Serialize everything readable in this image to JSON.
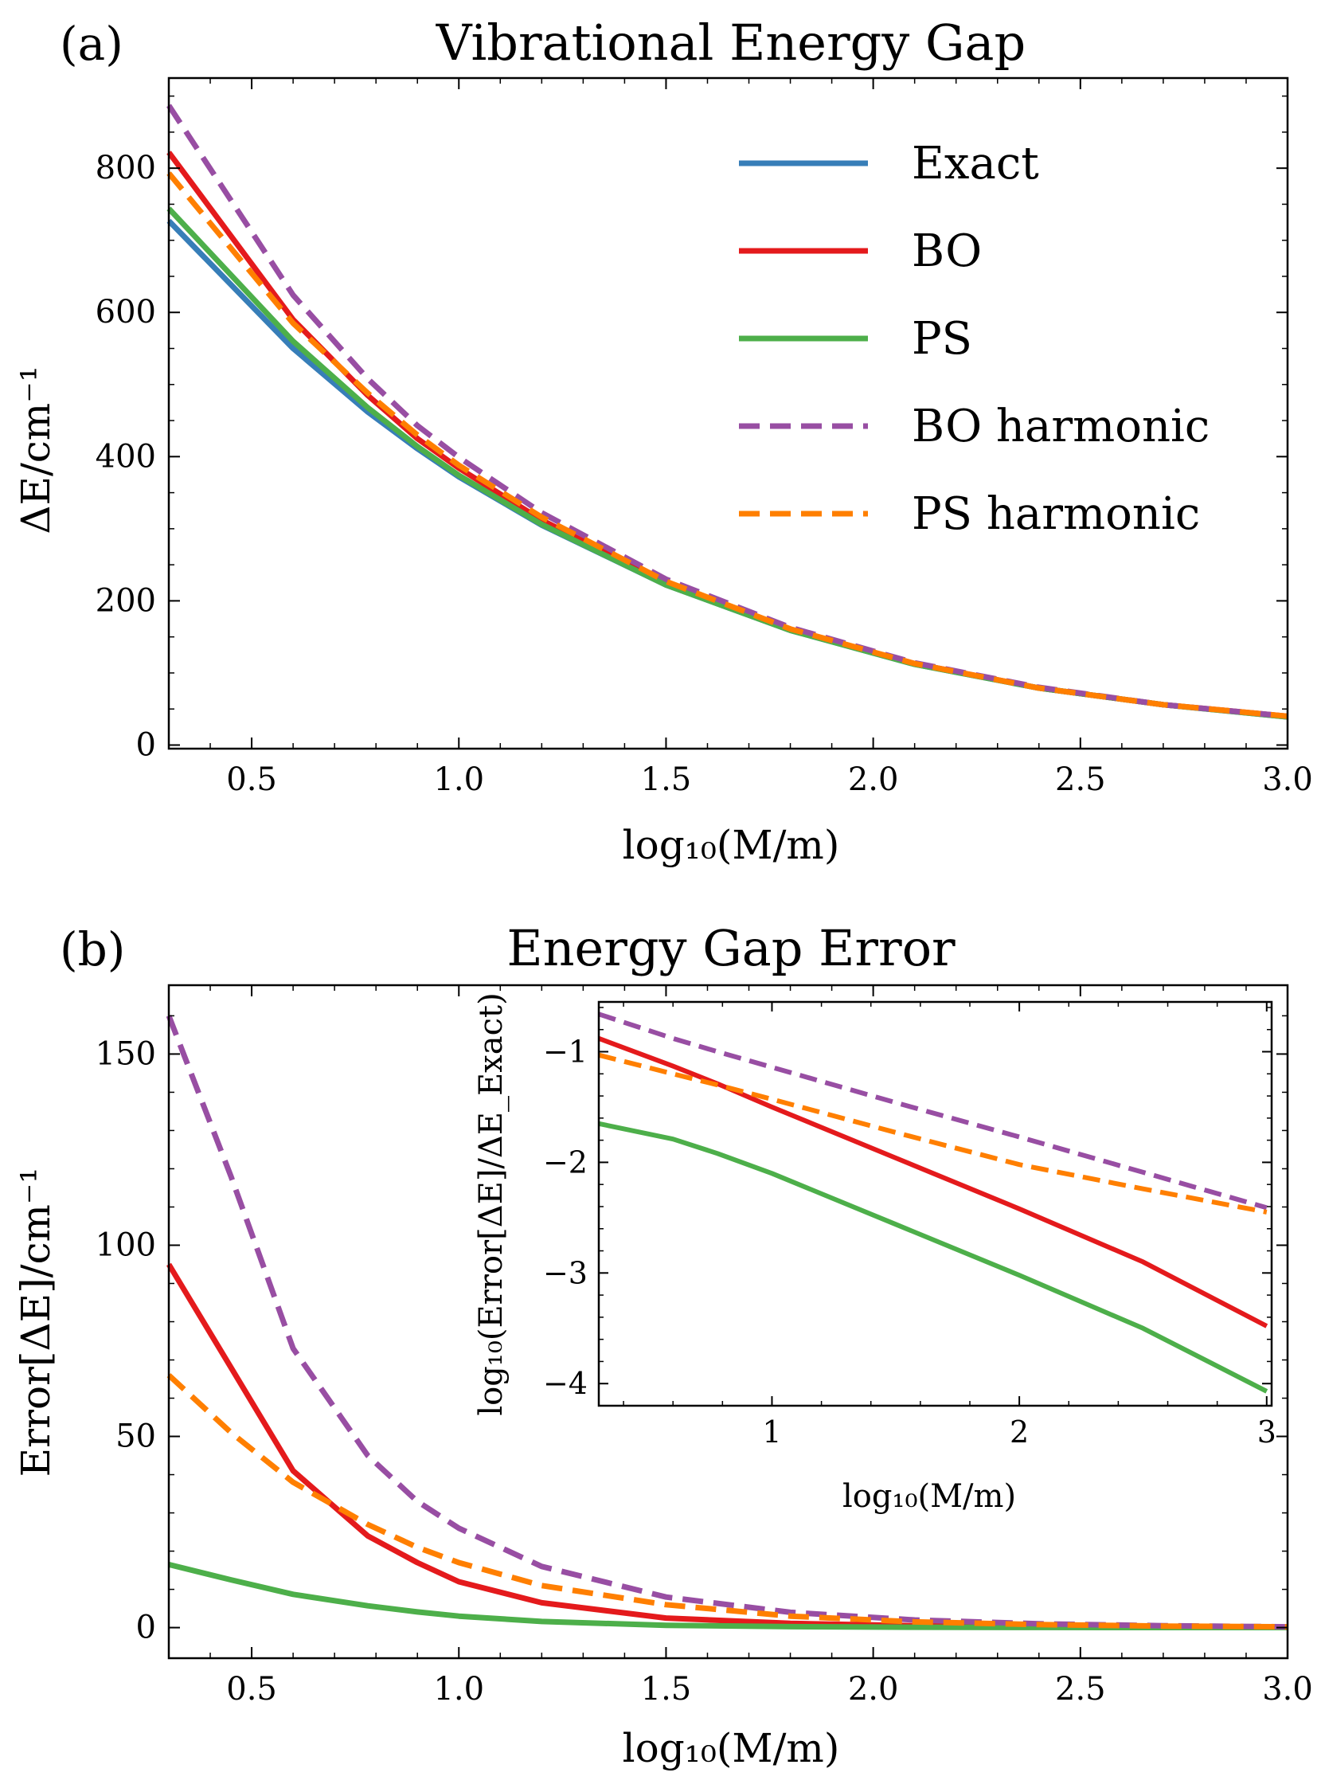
{
  "colors": {
    "Exact": "#377eb8",
    "BO": "#e41a1c",
    "PS": "#4daf4a",
    "BO harmonic": "#984ea3",
    "PS harmonic": "#ff7f00"
  },
  "chart_data": [
    {
      "type": "line",
      "panel_label": "(a)",
      "title": "Vibrational Energy Gap",
      "xlabel": "log₁₀(M/m)",
      "ylabel": "ΔE/cm⁻¹",
      "xlim": [
        0.3,
        3.0
      ],
      "ylim": [
        -5,
        925
      ],
      "xticks": [
        0.5,
        1.0,
        1.5,
        2.0,
        2.5,
        3.0
      ],
      "xtick_labels": [
        "0.5",
        "1.0",
        "1.5",
        "2.0",
        "2.5",
        "3.0"
      ],
      "yticks": [
        0,
        200,
        400,
        600,
        800
      ],
      "ytick_labels": [
        "0",
        "200",
        "400",
        "600",
        "800"
      ],
      "legend_position": "top-right",
      "x": [
        0.3,
        0.6,
        0.78,
        0.9,
        1.0,
        1.2,
        1.5,
        1.8,
        2.1,
        2.4,
        2.7,
        3.0
      ],
      "series": [
        {
          "name": "Exact",
          "dash": "solid",
          "values": [
            727,
            550,
            462,
            411,
            372,
            305,
            222,
            159,
            112,
            79,
            56,
            39
          ]
        },
        {
          "name": "BO",
          "dash": "solid",
          "values": [
            822,
            590,
            485,
            425,
            384,
            312,
            225,
            160,
            113,
            79,
            56,
            40
          ]
        },
        {
          "name": "PS",
          "dash": "solid",
          "values": [
            744,
            560,
            468,
            414,
            374,
            306,
            222,
            159,
            112,
            79,
            56,
            39
          ]
        },
        {
          "name": "BO harmonic",
          "dash": "dashed",
          "values": [
            887,
            624,
            508,
            443,
            399,
            322,
            230,
            163,
            114,
            80,
            56,
            40
          ]
        },
        {
          "name": "PS harmonic",
          "dash": "dashed",
          "values": [
            793,
            585,
            488,
            430,
            388,
            316,
            227,
            161,
            113,
            79,
            56,
            40
          ]
        }
      ]
    },
    {
      "type": "line",
      "panel_label": "(b)",
      "title": "Energy Gap Error",
      "xlabel": "log₁₀(M/m)",
      "ylabel": "Error[ΔE]/cm⁻¹",
      "xlim": [
        0.3,
        3.0
      ],
      "ylim": [
        -8,
        168
      ],
      "xticks": [
        0.5,
        1.0,
        1.5,
        2.0,
        2.5,
        3.0
      ],
      "xtick_labels": [
        "0.5",
        "1.0",
        "1.5",
        "2.0",
        "2.5",
        "3.0"
      ],
      "yticks": [
        0,
        50,
        100,
        150
      ],
      "ytick_labels": [
        "0",
        "50",
        "100",
        "150"
      ],
      "x": [
        0.3,
        0.45,
        0.6,
        0.78,
        0.9,
        1.0,
        1.2,
        1.5,
        1.8,
        2.1,
        2.4,
        2.7,
        3.0
      ],
      "series": [
        {
          "name": "BO",
          "dash": "solid",
          "values": [
            95,
            68,
            41,
            24,
            17,
            12,
            6.5,
            2.5,
            1.1,
            0.5,
            0.2,
            0.1,
            0.05
          ]
        },
        {
          "name": "PS",
          "dash": "solid",
          "values": [
            16.5,
            12.5,
            8.7,
            5.7,
            4.1,
            3.0,
            1.6,
            0.6,
            0.25,
            0.1,
            0.05,
            0.02,
            0.01
          ]
        },
        {
          "name": "BO harmonic",
          "dash": "dashed",
          "values": [
            160,
            118,
            73,
            45,
            33,
            26,
            16,
            8,
            4,
            2,
            1,
            0.5,
            0.2
          ]
        },
        {
          "name": "PS harmonic",
          "dash": "dashed",
          "values": [
            66,
            51,
            38,
            27,
            21,
            17,
            11,
            6,
            3,
            1.5,
            0.8,
            0.4,
            0.2
          ]
        }
      ],
      "inset": {
        "type": "line",
        "xlabel": "log₁₀(M/m)",
        "ylabel": "log₁₀(Error[ΔE]/ΔE_Exact)",
        "xlim": [
          0.3,
          3.02
        ],
        "ylim": [
          -4.2,
          -0.55
        ],
        "xticks": [
          1,
          2,
          3
        ],
        "xtick_labels": [
          "1",
          "2",
          "3"
        ],
        "yticks": [
          -1,
          -2,
          -3,
          -4
        ],
        "ytick_labels": [
          "−1",
          "−2",
          "−3",
          "−4"
        ],
        "x": [
          0.3,
          0.6,
          0.78,
          1.0,
          1.5,
          2.0,
          2.5,
          3.0
        ],
        "series": [
          {
            "name": "BO",
            "dash": "solid",
            "values": [
              -0.88,
              -1.13,
              -1.29,
              -1.5,
              -1.96,
              -2.42,
              -2.9,
              -3.48
            ]
          },
          {
            "name": "PS",
            "dash": "solid",
            "values": [
              -1.65,
              -1.79,
              -1.92,
              -2.1,
              -2.56,
              -3.02,
              -3.5,
              -4.07
            ]
          },
          {
            "name": "BO harmonic",
            "dash": "dashed",
            "values": [
              -0.66,
              -0.88,
              -1.0,
              -1.14,
              -1.46,
              -1.77,
              -2.09,
              -2.41
            ]
          },
          {
            "name": "PS harmonic",
            "dash": "dashed",
            "values": [
              -1.03,
              -1.2,
              -1.3,
              -1.43,
              -1.73,
              -2.02,
              -2.24,
              -2.45
            ]
          }
        ]
      }
    }
  ]
}
